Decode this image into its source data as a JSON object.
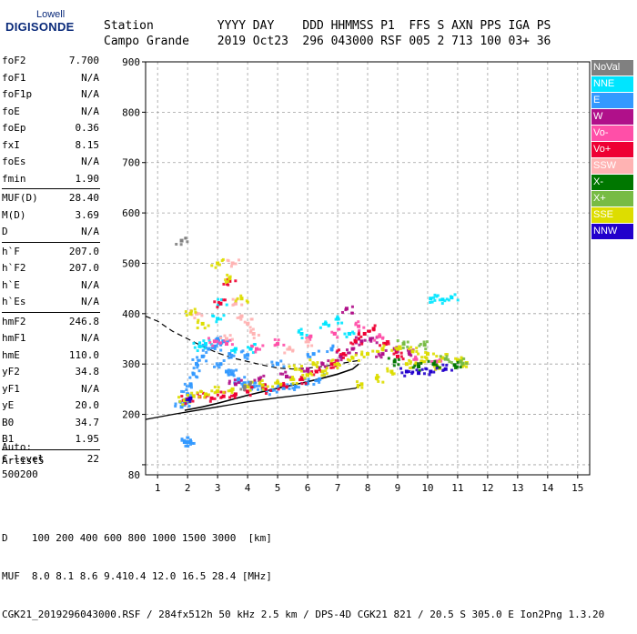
{
  "logo": {
    "line1": "Lowell",
    "line2": "DIGISONDE"
  },
  "header": {
    "row1": [
      "Station",
      "YYYY",
      "DAY",
      "DDD",
      "HHMMSS",
      "P1",
      "FFS",
      "S",
      "AXN",
      "PPS",
      "IGA",
      "PS"
    ],
    "row2": [
      "Campo Grande",
      "2019",
      "Oct23",
      "296",
      "043000",
      "RSF",
      "005",
      "2",
      "713",
      "100",
      "03+",
      "36"
    ]
  },
  "params": [
    [
      [
        "foF2",
        "7.700"
      ],
      [
        "foF1",
        "N/A"
      ],
      [
        "foF1p",
        "N/A"
      ],
      [
        "foE",
        "N/A"
      ],
      [
        "foEp",
        "0.36"
      ],
      [
        "fxI",
        "8.15"
      ],
      [
        "foEs",
        "N/A"
      ],
      [
        "fmin",
        "1.90"
      ]
    ],
    [
      [
        "MUF(D)",
        "28.40"
      ],
      [
        "M(D)",
        "3.69"
      ],
      [
        "D",
        "N/A"
      ]
    ],
    [
      [
        "h`F",
        "207.0"
      ],
      [
        "h`F2",
        "207.0"
      ],
      [
        "h`E",
        "N/A"
      ],
      [
        "h`Es",
        "N/A"
      ]
    ],
    [
      [
        "hmF2",
        "246.8"
      ],
      [
        "hmF1",
        "N/A"
      ],
      [
        "hmE",
        "110.0"
      ],
      [
        "yF2",
        "34.8"
      ],
      [
        "yF1",
        "N/A"
      ],
      [
        "yE",
        "20.0"
      ],
      [
        "B0",
        "34.7"
      ],
      [
        "B1",
        "1.95"
      ]
    ],
    [
      [
        "C-level",
        "22"
      ]
    ]
  ],
  "auto": {
    "line1": "Auto:",
    "line2": "Artist5",
    "line3": "500200"
  },
  "legend": [
    {
      "label": "NoVal",
      "color": "#808080"
    },
    {
      "label": "NNE",
      "color": "#00e5ff"
    },
    {
      "label": "E",
      "color": "#3399ff"
    },
    {
      "label": "W",
      "color": "#b0108a"
    },
    {
      "label": "Vo-",
      "color": "#ff4fa8"
    },
    {
      "label": "Vo+",
      "color": "#ee0033"
    },
    {
      "label": "SSW",
      "color": "#ffb3b3"
    },
    {
      "label": "X-",
      "color": "#007700"
    },
    {
      "label": "X+",
      "color": "#77bb44"
    },
    {
      "label": "SSE",
      "color": "#dddd00"
    },
    {
      "label": "NNW",
      "color": "#2200cc"
    }
  ],
  "footer": {
    "d_label": "D",
    "d_values": [
      "100",
      "200",
      "400",
      "600",
      "800",
      "1000",
      "1500",
      "3000",
      "[km]"
    ],
    "muf_label": "MUF",
    "muf_values": [
      "8.0",
      "8.1",
      "8.6",
      "9.4",
      "10.4",
      "12.0",
      "16.5",
      "28.4",
      "[MHz]"
    ],
    "info": "CGK21_2019296043000.RSF / 284fx512h 50 kHz 2.5 km / DPS-4D CGK21 821 / 20.5 S 305.0 E Ion2Png 1.3.20"
  },
  "chart_data": {
    "type": "scatter",
    "title": "",
    "xlabel": "",
    "ylabel": "",
    "xlim": [
      0.6,
      15.4
    ],
    "ylim": [
      80,
      900
    ],
    "x_ticks": [
      1,
      2,
      3,
      4,
      5,
      6,
      7,
      8,
      9,
      10,
      11,
      12,
      13,
      14,
      15
    ],
    "y_ticks": [
      100,
      200,
      300,
      400,
      500,
      600,
      700,
      800,
      900
    ],
    "y_tick_labels": [
      "",
      "200",
      "300",
      "400",
      "500",
      "600",
      "700",
      "800",
      "900"
    ],
    "y_axis_min_label": "80",
    "grid": true,
    "legend_position": "right",
    "series": [
      {
        "name": "E",
        "color": "#3399ff",
        "points": [
          [
            1.8,
            215
          ],
          [
            1.9,
            225
          ],
          [
            2.0,
            240
          ],
          [
            2.1,
            260
          ],
          [
            2.2,
            280
          ],
          [
            2.3,
            300
          ],
          [
            2.5,
            315
          ],
          [
            2.7,
            330
          ],
          [
            2.9,
            335
          ],
          [
            3.1,
            300
          ],
          [
            3.3,
            285
          ],
          [
            3.5,
            280
          ],
          [
            3.7,
            270
          ],
          [
            3.9,
            262
          ],
          [
            4.2,
            255
          ],
          [
            4.5,
            250
          ],
          [
            4.8,
            248
          ],
          [
            5.2,
            252
          ],
          [
            5.6,
            255
          ],
          [
            6.0,
            262
          ],
          [
            6.4,
            270
          ],
          [
            1.9,
            145
          ],
          [
            2.0,
            145
          ],
          [
            2.1,
            145
          ],
          [
            3.0,
            350
          ],
          [
            3.2,
            345
          ],
          [
            3.4,
            320
          ],
          [
            4.0,
            318
          ],
          [
            5.0,
            300
          ],
          [
            6.2,
            320
          ],
          [
            6.8,
            330
          ]
        ]
      },
      {
        "name": "NNE",
        "color": "#00e5ff",
        "points": [
          [
            2.4,
            335
          ],
          [
            2.6,
            340
          ],
          [
            3.0,
            390
          ],
          [
            3.1,
            420
          ],
          [
            3.6,
            330
          ],
          [
            4.1,
            330
          ],
          [
            5.8,
            360
          ],
          [
            6.6,
            380
          ],
          [
            7.0,
            390
          ],
          [
            7.4,
            360
          ],
          [
            10.1,
            430
          ],
          [
            10.5,
            428
          ],
          [
            10.8,
            432
          ]
        ]
      },
      {
        "name": "W",
        "color": "#b0108a",
        "points": [
          [
            3.6,
            260
          ],
          [
            4.4,
            268
          ],
          [
            5.3,
            275
          ],
          [
            6.0,
            290
          ],
          [
            6.5,
            300
          ],
          [
            7.1,
            315
          ],
          [
            7.5,
            330
          ],
          [
            7.8,
            345
          ],
          [
            8.1,
            350
          ],
          [
            8.5,
            320
          ],
          [
            8.9,
            330
          ],
          [
            9.4,
            320
          ],
          [
            7.3,
            410
          ]
        ]
      },
      {
        "name": "Vo+",
        "color": "#ee0033",
        "points": [
          [
            2.0,
            230
          ],
          [
            2.4,
            235
          ],
          [
            2.8,
            232
          ],
          [
            3.2,
            236
          ],
          [
            3.6,
            240
          ],
          [
            4.0,
            245
          ],
          [
            4.6,
            250
          ],
          [
            5.2,
            258
          ],
          [
            5.8,
            270
          ],
          [
            6.3,
            285
          ],
          [
            6.8,
            300
          ],
          [
            7.2,
            320
          ],
          [
            7.6,
            345
          ],
          [
            7.9,
            360
          ],
          [
            8.2,
            370
          ],
          [
            8.6,
            340
          ],
          [
            9.0,
            315
          ],
          [
            3.4,
            465
          ],
          [
            3.1,
            420
          ]
        ]
      },
      {
        "name": "Vo-",
        "color": "#ff4fa8",
        "points": [
          [
            2.9,
            345
          ],
          [
            3.3,
            340
          ],
          [
            4.3,
            330
          ],
          [
            5.0,
            340
          ],
          [
            6.1,
            355
          ],
          [
            6.9,
            360
          ],
          [
            7.7,
            375
          ],
          [
            8.4,
            355
          ],
          [
            9.6,
            310
          ],
          [
            10.3,
            305
          ]
        ]
      },
      {
        "name": "SSW",
        "color": "#ffb3b3",
        "points": [
          [
            2.3,
            400
          ],
          [
            3.3,
            350
          ],
          [
            3.5,
            500
          ],
          [
            3.6,
            420
          ],
          [
            3.8,
            395
          ],
          [
            4.0,
            380
          ],
          [
            4.2,
            360
          ],
          [
            5.4,
            330
          ],
          [
            6.0,
            345
          ]
        ]
      },
      {
        "name": "SSE",
        "color": "#dddd00",
        "points": [
          [
            1.9,
            228
          ],
          [
            2.2,
            236
          ],
          [
            2.6,
            240
          ],
          [
            3.0,
            246
          ],
          [
            3.5,
            250
          ],
          [
            4.0,
            255
          ],
          [
            4.5,
            258
          ],
          [
            5.0,
            263
          ],
          [
            5.5,
            270
          ],
          [
            6.0,
            278
          ],
          [
            6.5,
            285
          ],
          [
            7.0,
            300
          ],
          [
            7.5,
            312
          ],
          [
            8.0,
            320
          ],
          [
            8.5,
            330
          ],
          [
            9.0,
            330
          ],
          [
            9.5,
            325
          ],
          [
            10.0,
            320
          ],
          [
            10.5,
            312
          ],
          [
            11.0,
            308
          ],
          [
            11.3,
            302
          ],
          [
            7.8,
            260
          ],
          [
            8.3,
            272
          ],
          [
            8.8,
            285
          ],
          [
            9.3,
            300
          ],
          [
            9.8,
            305
          ],
          [
            10.4,
            292
          ],
          [
            2.1,
            400
          ],
          [
            3.0,
            500
          ],
          [
            3.4,
            470
          ],
          [
            3.8,
            430
          ],
          [
            2.5,
            380
          ],
          [
            6.2,
            300
          ],
          [
            5.6,
            290
          ]
        ]
      },
      {
        "name": "X-",
        "color": "#007700",
        "points": [
          [
            8.9,
            305
          ],
          [
            9.7,
            295
          ],
          [
            10.2,
            300
          ],
          [
            10.9,
            298
          ]
        ]
      },
      {
        "name": "X+",
        "color": "#77bb44",
        "points": [
          [
            9.2,
            340
          ],
          [
            9.9,
            338
          ],
          [
            10.6,
            310
          ],
          [
            11.1,
            305
          ]
        ]
      },
      {
        "name": "NNW",
        "color": "#2200cc",
        "points": [
          [
            9.3,
            285
          ],
          [
            9.7,
            282
          ],
          [
            10.1,
            285
          ],
          [
            10.6,
            290
          ],
          [
            2.1,
            232
          ]
        ]
      },
      {
        "name": "NoVal",
        "color": "#808080",
        "points": [
          [
            1.8,
            545
          ],
          [
            3.9,
            255
          ]
        ]
      }
    ],
    "trace_lower": [
      [
        0.6,
        190
      ],
      [
        1.5,
        200
      ],
      [
        2.0,
        205
      ],
      [
        3.0,
        215
      ],
      [
        4.0,
        225
      ],
      [
        5.0,
        233
      ],
      [
        6.0,
        240
      ],
      [
        7.0,
        247
      ],
      [
        7.6,
        252
      ],
      [
        7.8,
        260
      ]
    ],
    "trace_upper": [
      [
        0.6,
        395
      ],
      [
        1.0,
        385
      ],
      [
        1.5,
        365
      ],
      [
        2.0,
        350
      ],
      [
        2.5,
        335
      ],
      [
        3.0,
        322
      ],
      [
        3.5,
        312
      ],
      [
        4.0,
        305
      ],
      [
        4.5,
        298
      ],
      [
        5.0,
        292
      ],
      [
        5.5,
        290
      ],
      [
        6.0,
        292
      ],
      [
        6.5,
        295
      ],
      [
        7.0,
        300
      ],
      [
        7.5,
        305
      ],
      [
        7.8,
        308
      ]
    ],
    "trace_f": [
      [
        1.9,
        208
      ],
      [
        2.5,
        215
      ],
      [
        3.0,
        222
      ],
      [
        3.5,
        230
      ],
      [
        4.0,
        238
      ],
      [
        4.5,
        245
      ],
      [
        5.0,
        252
      ],
      [
        5.5,
        258
      ],
      [
        6.0,
        265
      ],
      [
        6.5,
        272
      ],
      [
        7.0,
        280
      ],
      [
        7.5,
        290
      ],
      [
        7.7,
        300
      ]
    ]
  }
}
